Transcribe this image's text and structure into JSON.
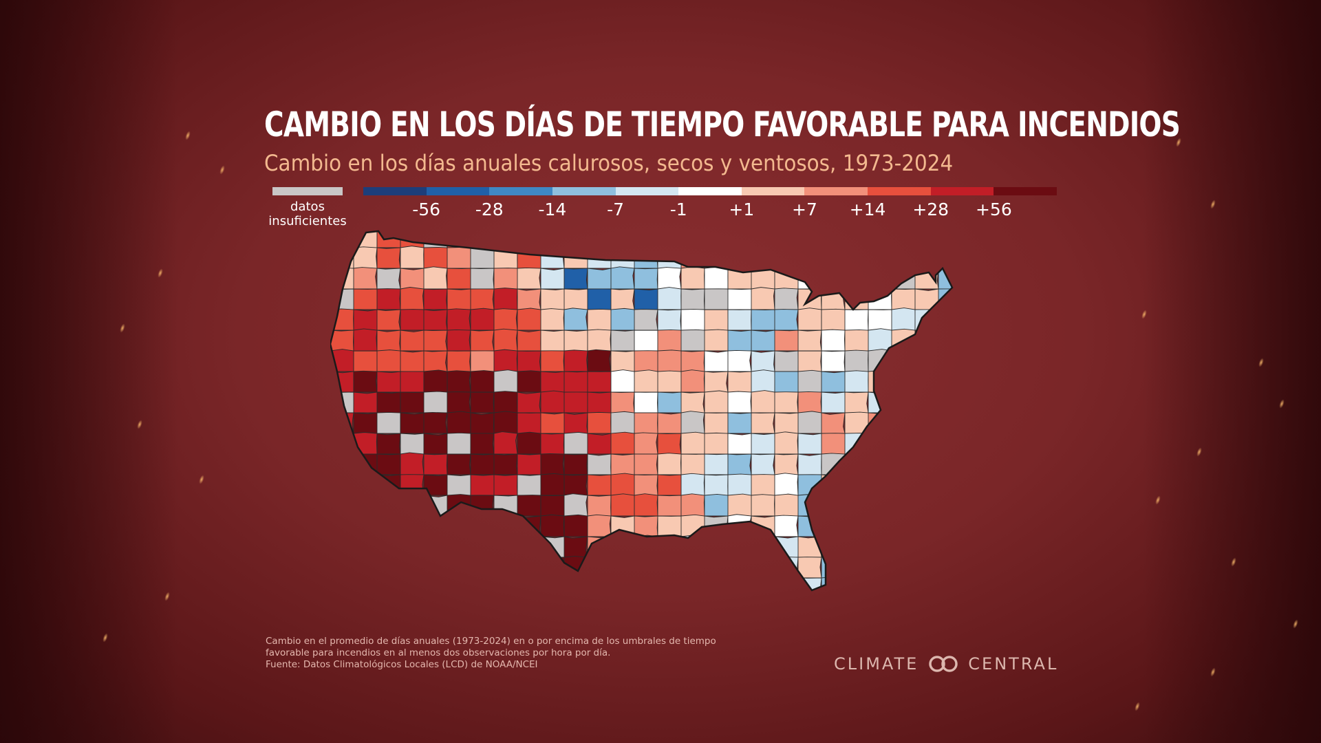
{
  "title": "CAMBIO EN LOS DÍAS DE TIEMPO FAVORABLE PARA INCENDIOS",
  "subtitle": "Cambio en los días anuales calurosos, secos y ventosos, 1973-2024",
  "legend": {
    "no_data_label_line1": "datos",
    "no_data_label_line2": "insuficientes",
    "no_data_color": "#c9c6c6",
    "colors": [
      "#1d3e7a",
      "#2060a8",
      "#3f88c4",
      "#8fbfde",
      "#d4e6f1",
      "#ffffff",
      "#f8c9b2",
      "#f2907a",
      "#e7503d",
      "#c21e27",
      "#6b0c12"
    ],
    "ticks": [
      "-56",
      "-28",
      "-14",
      "-7",
      "-1",
      "+1",
      "+7",
      "+14",
      "+28",
      "+56"
    ]
  },
  "map_data": {
    "type": "choropleth",
    "region": "Estados Unidos contiguos (divisiones climáticas)",
    "scale_unit": "días por año",
    "pattern": {
      "suroeste": "+28 a +56 (rojo oscuro)",
      "gran_cuenca_y_rocosas": "+14 a +56",
      "costa_oeste": "+7 a +28",
      "texas_oeste": "+28 a +56",
      "grandes_llanuras_norte": "-1 a -28 (azul)",
      "medio_oeste_y_este": "-7 a +14 mixto",
      "sureste": "-7 a +7 mixto",
      "noreste": "-7 a +7 mixto"
    }
  },
  "footnote": {
    "line1": "Cambio en el promedio de días anuales (1973-2024) en o por encima de los umbrales de tiempo",
    "line2": "favorable para incendios en al menos dos observaciones por hora por día.",
    "line3": "Fuente: Datos Climatológicos Locales (LCD) de NOAA/NCEI"
  },
  "logo": {
    "left": "CLIMATE",
    "right": "CENTRAL"
  }
}
